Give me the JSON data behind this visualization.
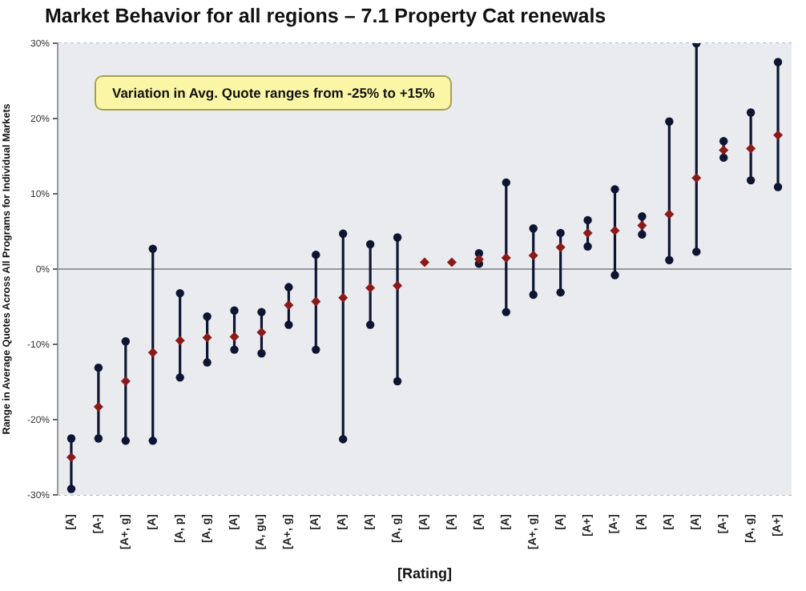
{
  "chart_data": {
    "type": "scatter",
    "title": "Market Behavior for all regions – 7.1 Property Cat renewals",
    "ylabel": "Range in Average Quotes Across All Programs for Individual Markets",
    "xlabel": "[Rating]",
    "annotations": [
      "Variation in Avg. Quote ranges from -25% to +15%"
    ],
    "categories": [
      "[A]",
      "[A-]",
      "[A+, g]",
      "[A]",
      "[A, p]",
      "[A, g]",
      "[A]",
      "[A, gu]",
      "[A+, g]",
      "[A]",
      "[A]",
      "[A]",
      "[A, g]",
      "[A]",
      "[A]",
      "[A]",
      "[A]",
      "[A+, g]",
      "[A]",
      "[A+]",
      "[A-]",
      "[A]",
      "[A]",
      "[A]",
      "[A-]",
      "[A, g]",
      "[A+]"
    ],
    "series": [
      {
        "color": "#8b1a1a",
        "values": [
          -25,
          -18.3,
          -14.9,
          -11.1,
          -9.5,
          -9.1,
          -9.0,
          -8.4,
          -4.8,
          -4.3,
          -3.8,
          -2.5,
          -2.2,
          0.9,
          0.9,
          1.3,
          1.5,
          1.8,
          2.9,
          4.8,
          5.1,
          5.8,
          7.3,
          12.1,
          15.8,
          16.0,
          17.8
        ],
        "errors": [
          [
            -29.2,
            -22.5
          ],
          [
            -22.5,
            -13.1
          ],
          [
            -22.8,
            -9.6
          ],
          [
            -22.8,
            2.7
          ],
          [
            -14.4,
            -3.2
          ],
          [
            -12.4,
            -6.3
          ],
          [
            -10.7,
            -5.5
          ],
          [
            -11.2,
            -5.7
          ],
          [
            -7.4,
            -2.4
          ],
          [
            -10.7,
            1.9
          ],
          [
            -22.6,
            4.7
          ],
          [
            -7.4,
            3.3
          ],
          [
            -14.9,
            4.2
          ],
          null,
          null,
          [
            0.7,
            2.1
          ],
          [
            -5.7,
            11.5
          ],
          [
            -3.4,
            5.4
          ],
          [
            -3.1,
            4.8
          ],
          [
            3.0,
            6.5
          ],
          [
            -0.8,
            10.6
          ],
          [
            4.6,
            7.0
          ],
          [
            1.2,
            19.6
          ],
          [
            2.3,
            30
          ],
          [
            14.8,
            17.0
          ],
          [
            11.8,
            20.8
          ],
          [
            10.9,
            27.5
          ]
        ]
      }
    ],
    "marker": "diamond",
    "grid": "y",
    "ylim": [
      -30,
      30
    ],
    "yticks": [
      {
        "value": -30,
        "label": "-30%"
      },
      {
        "value": -20,
        "label": "-20%"
      },
      {
        "value": -10,
        "label": "-10%"
      },
      {
        "value": 0,
        "label": "0%"
      },
      {
        "value": 10,
        "label": "10%"
      },
      {
        "value": 20,
        "label": "20%"
      },
      {
        "value": 30,
        "label": "30%"
      }
    ]
  }
}
